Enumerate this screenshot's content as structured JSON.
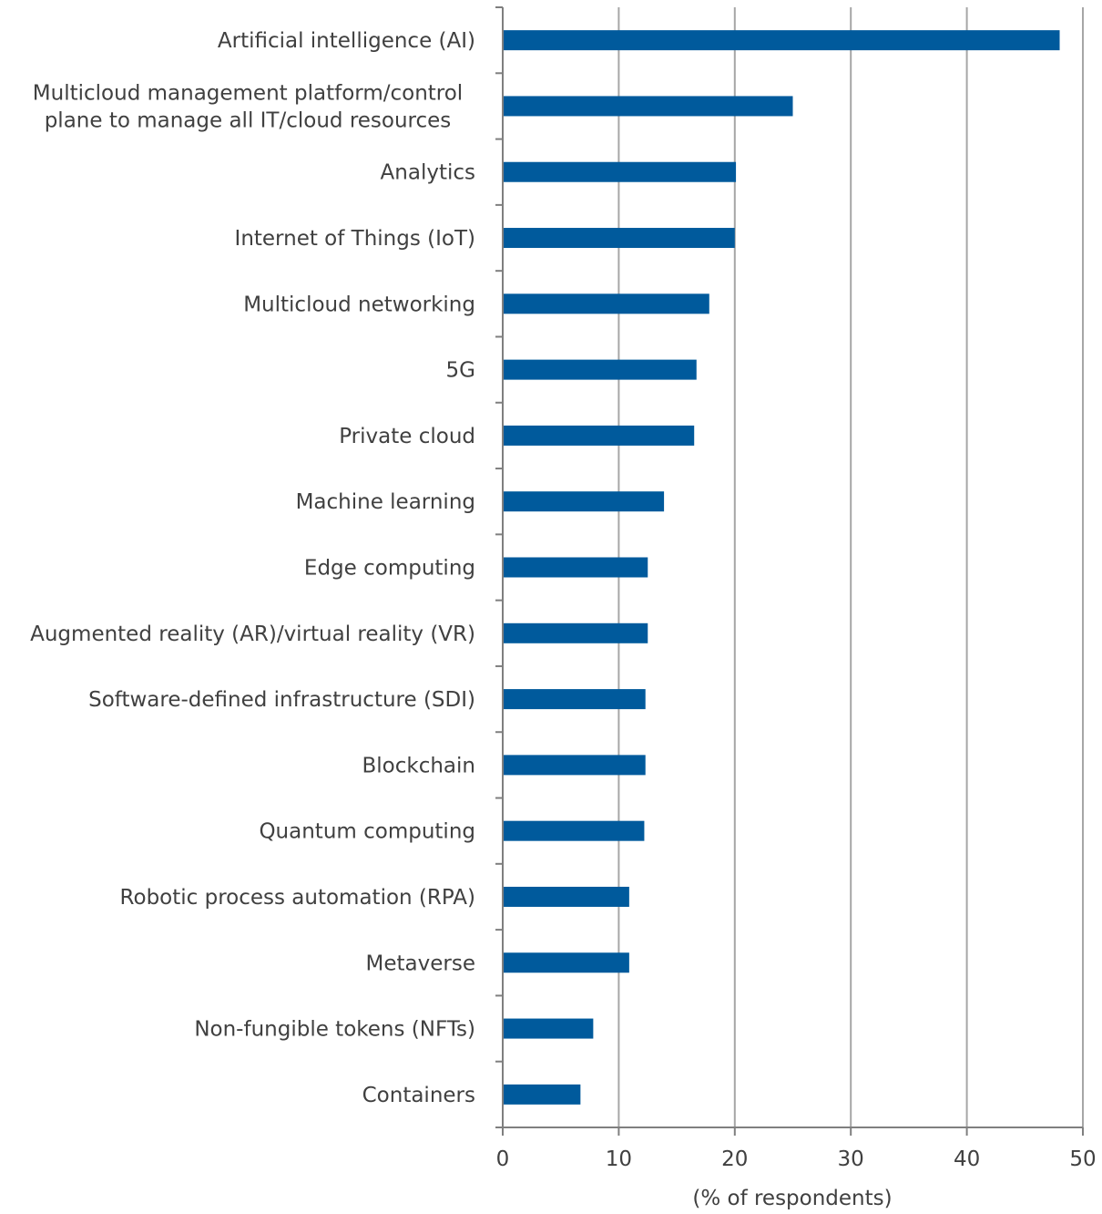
{
  "chart_data": {
    "type": "bar",
    "orientation": "horizontal",
    "categories": [
      [
        "Artificial intelligence (AI)"
      ],
      [
        "Multicloud management platform/control",
        "plane to manage all IT/cloud resources"
      ],
      [
        "Analytics"
      ],
      [
        "Internet of Things (IoT)"
      ],
      [
        "Multicloud networking"
      ],
      [
        "5G"
      ],
      [
        "Private cloud"
      ],
      [
        "Machine learning"
      ],
      [
        "Edge computing"
      ],
      [
        "Augmented reality (AR)/virtual reality (VR)"
      ],
      [
        "Software-defined infrastructure (SDI)"
      ],
      [
        "Blockchain"
      ],
      [
        "Quantum computing"
      ],
      [
        "Robotic process automation (RPA)"
      ],
      [
        "Metaverse"
      ],
      [
        "Non-fungible tokens (NFTs)"
      ],
      [
        "Containers"
      ]
    ],
    "values": [
      48,
      25,
      20.1,
      20,
      17.8,
      16.7,
      16.5,
      13.9,
      12.5,
      12.5,
      12.3,
      12.3,
      12.2,
      10.9,
      10.9,
      7.8,
      6.7
    ],
    "xlabel": "(% of respondents)",
    "xlim": [
      0,
      50
    ],
    "xticks": [
      "0",
      "10",
      "20",
      "30",
      "40",
      "50"
    ],
    "bar_color": "#005a9c",
    "grid": true
  }
}
